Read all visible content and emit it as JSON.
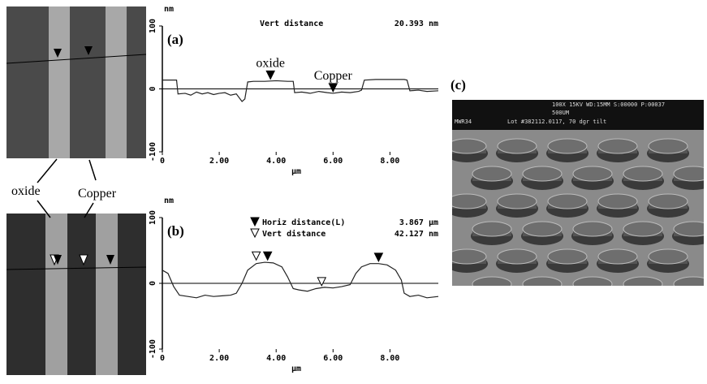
{
  "chart_data": [
    {
      "type": "line",
      "label": "(a)",
      "y_unit": "nm",
      "x_label": "μm",
      "annotations": [
        "Vert distance",
        "20.393 nm"
      ],
      "callouts": [
        {
          "text": "oxide",
          "x": 3.8,
          "y": 13
        },
        {
          "text": "Copper",
          "x": 6.0,
          "y": -7
        }
      ],
      "x": [
        0,
        0.5,
        0.55,
        0.8,
        1.0,
        1.2,
        1.4,
        1.6,
        1.8,
        2.0,
        2.2,
        2.4,
        2.6,
        2.8,
        2.9,
        3.0,
        3.2,
        3.6,
        4.0,
        4.4,
        4.6,
        4.65,
        4.9,
        5.2,
        5.5,
        5.8,
        6.0,
        6.3,
        6.6,
        6.9,
        7.0,
        7.1,
        7.5,
        8.0,
        8.5,
        8.6,
        8.7,
        9.0,
        9.3,
        9.7
      ],
      "series": [
        {
          "color": "#222222",
          "values": [
            14,
            14,
            -8,
            -7,
            -10,
            -5,
            -8,
            -6,
            -9,
            -7,
            -6,
            -10,
            -8,
            -20,
            -16,
            11,
            12,
            12,
            13,
            12,
            12,
            -6,
            -5,
            -7,
            -4,
            -6,
            -7,
            -5,
            -6,
            -4,
            -2,
            14,
            15,
            15,
            15,
            14,
            -3,
            -2,
            -4,
            -3
          ]
        }
      ],
      "baseline": 0,
      "xlim": [
        0,
        9.7
      ],
      "ylim": [
        -100,
        100
      ],
      "xticks": [
        0,
        {
          "value": 2,
          "label": "2.00"
        },
        {
          "value": 4,
          "label": "4.00"
        },
        {
          "value": 6,
          "label": "6.00"
        },
        {
          "value": 8,
          "label": "8.00"
        }
      ],
      "yticks": [
        100,
        0,
        -100
      ]
    },
    {
      "type": "line",
      "label": "(b)",
      "y_unit": "nm",
      "x_label": "μm",
      "annotations": [
        "Horiz distance(L)",
        "3.867 μm",
        "Vert distance",
        "42.127 nm"
      ],
      "markers": [
        {
          "x": 3.3,
          "y": 33,
          "style": "hollow"
        },
        {
          "x": 3.7,
          "y": 33,
          "style": "filled"
        },
        {
          "x": 5.6,
          "y": -6,
          "style": "hollow"
        },
        {
          "x": 7.6,
          "y": 31,
          "style": "filled"
        }
      ],
      "x": [
        0,
        0.2,
        0.4,
        0.6,
        0.9,
        1.2,
        1.5,
        1.8,
        2.1,
        2.4,
        2.6,
        2.8,
        3.0,
        3.3,
        3.6,
        3.9,
        4.2,
        4.4,
        4.6,
        4.8,
        5.1,
        5.4,
        5.7,
        6.0,
        6.3,
        6.6,
        6.8,
        7.0,
        7.3,
        7.6,
        7.9,
        8.2,
        8.4,
        8.5,
        8.7,
        9.0,
        9.3,
        9.7
      ],
      "series": [
        {
          "color": "#222222",
          "values": [
            20,
            15,
            -5,
            -18,
            -20,
            -22,
            -18,
            -20,
            -19,
            -18,
            -15,
            0,
            20,
            30,
            32,
            31,
            25,
            10,
            -8,
            -10,
            -12,
            -8,
            -6,
            -7,
            -5,
            -2,
            15,
            25,
            30,
            30,
            28,
            20,
            5,
            -15,
            -20,
            -18,
            -22,
            -20
          ]
        }
      ],
      "baseline": 0,
      "xlim": [
        0,
        9.7
      ],
      "ylim": [
        -100,
        100
      ],
      "xticks": [
        0,
        {
          "value": 2,
          "label": "2.00"
        },
        {
          "value": 4,
          "label": "4.00"
        },
        {
          "value": 6,
          "label": "6.00"
        },
        {
          "value": 8,
          "label": "8.00"
        }
      ],
      "yticks": [
        100,
        0,
        -100
      ]
    }
  ],
  "figure": {
    "left_labels": [
      "oxide",
      "Copper"
    ],
    "panel_c": "(c)",
    "sem_text": [
      "100X   15KV WD:15MM   S:00000 P:00037",
      "500UM",
      "MWR34",
      "Lot #382112.0117, 70 dgr tilt"
    ]
  }
}
